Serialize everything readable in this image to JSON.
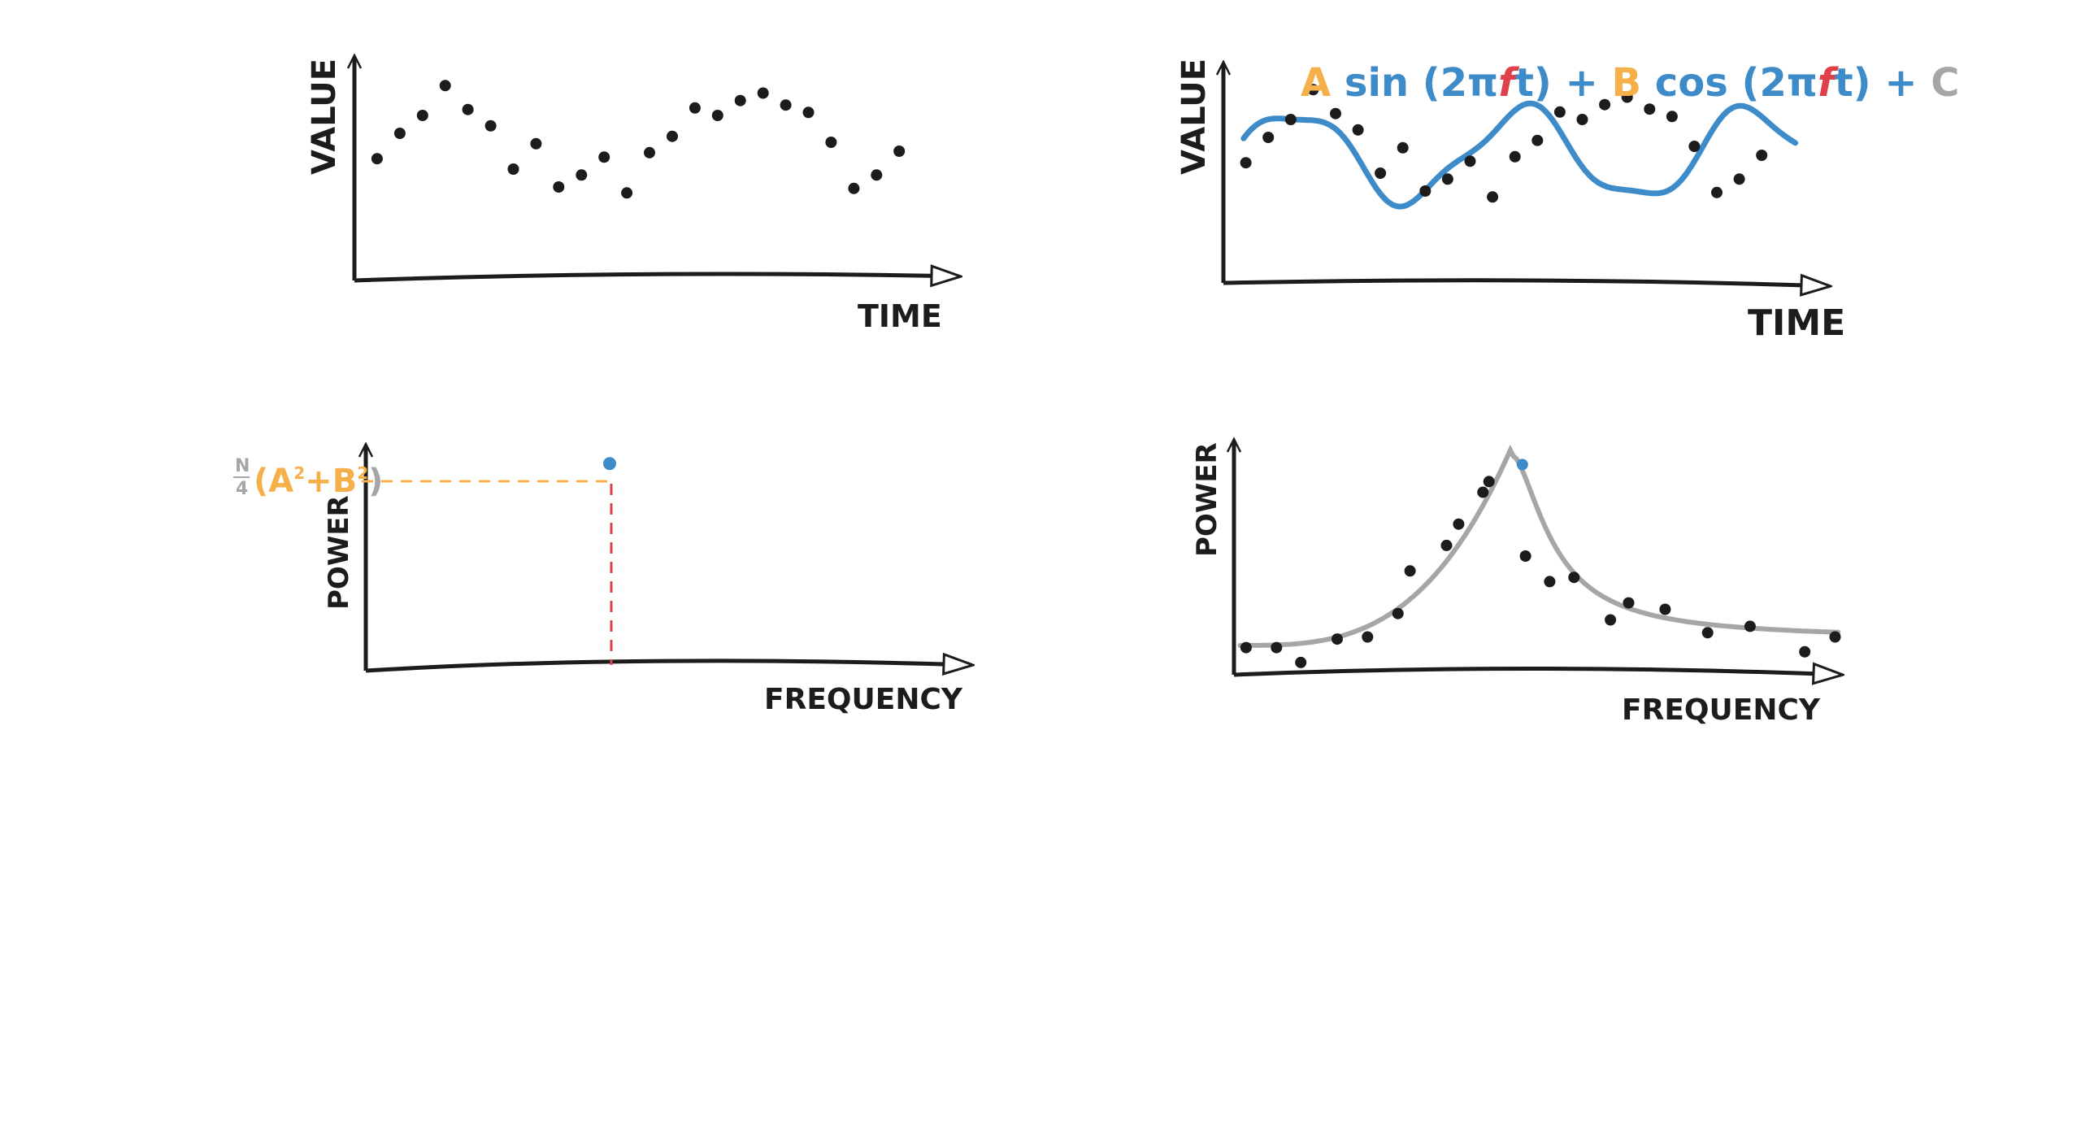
{
  "colors": {
    "ink": "#1c1c1c",
    "blue": "#3d8bc9",
    "orange": "#f5b04a",
    "red": "#e0404a",
    "gray": "#a6a6a6"
  },
  "panels": {
    "top_left": {
      "ylabel": "VALUE",
      "xlabel": "TIME"
    },
    "top_right": {
      "ylabel": "VALUE",
      "xlabel": "TIME",
      "equation": {
        "A": "A",
        "sin": " sin (2π",
        "f1": "f",
        "t1": "t) + ",
        "B": "B",
        "cos": " cos (2π",
        "f2": "f",
        "t2": "t) + ",
        "C": "C"
      }
    },
    "bottom_left": {
      "ylabel": "POWER",
      "xlabel": "FREQUENCY",
      "formula": {
        "n": "N",
        "d": "4",
        "open": "(",
        "a": "A",
        "sup1": "2",
        "plus": "+",
        "b": "B",
        "sup2": "2",
        "close": ")"
      }
    },
    "bottom_right": {
      "ylabel": "POWER",
      "xlabel": "FREQUENCY"
    }
  },
  "chart_data": [
    {
      "type": "scatter",
      "panel": "top_left",
      "xlabel": "TIME",
      "ylabel": "VALUE",
      "x": [
        1,
        2,
        3,
        4,
        5,
        6,
        7,
        8,
        9,
        10,
        11,
        12,
        13,
        14,
        15,
        16,
        17,
        18,
        19,
        20,
        21,
        22,
        23,
        24
      ],
      "y": [
        0.29,
        0.46,
        0.58,
        0.78,
        0.62,
        0.51,
        0.22,
        0.39,
        0.1,
        0.18,
        0.3,
        0.06,
        0.33,
        0.44,
        0.63,
        0.58,
        0.68,
        0.73,
        0.65,
        0.6,
        0.4,
        0.09,
        0.18,
        0.34
      ],
      "xlim": [
        0,
        27
      ],
      "ylim": [
        -0.5,
        1.0
      ]
    },
    {
      "type": "scatter",
      "panel": "top_right",
      "xlabel": "TIME",
      "ylabel": "VALUE",
      "x": [
        1,
        2,
        3,
        4,
        5,
        6,
        7,
        8,
        9,
        10,
        11,
        12,
        13,
        14,
        15,
        16,
        17,
        18,
        19,
        20,
        21,
        22,
        23,
        24
      ],
      "y": [
        0.29,
        0.46,
        0.58,
        0.78,
        0.62,
        0.51,
        0.22,
        0.39,
        0.1,
        0.18,
        0.3,
        0.06,
        0.33,
        0.44,
        0.63,
        0.58,
        0.68,
        0.73,
        0.65,
        0.6,
        0.4,
        0.09,
        0.18,
        0.34
      ],
      "fit": {
        "label": "A sin(2πft) + B cos(2πft) + C",
        "color": "#3d8bc9"
      },
      "xlim": [
        0,
        27
      ],
      "ylim": [
        -0.5,
        1.0
      ]
    },
    {
      "type": "scatter",
      "panel": "bottom_left",
      "xlabel": "FREQUENCY",
      "ylabel": "POWER",
      "x": [
        0.4
      ],
      "y": [
        1.0
      ],
      "highlight": "#3d8bc9",
      "xlim": [
        0,
        1
      ],
      "ylim": [
        0,
        1.1
      ]
    },
    {
      "type": "scatter",
      "panel": "bottom_right",
      "xlabel": "FREQUENCY",
      "ylabel": "POWER",
      "x": [
        0.02,
        0.07,
        0.11,
        0.17,
        0.22,
        0.27,
        0.29,
        0.35,
        0.37,
        0.41,
        0.42,
        0.48,
        0.52,
        0.56,
        0.62,
        0.65,
        0.71,
        0.78,
        0.85,
        0.94,
        0.99
      ],
      "y": [
        0.02,
        0.02,
        -0.05,
        0.06,
        0.07,
        0.18,
        0.38,
        0.5,
        0.6,
        0.75,
        0.8,
        0.45,
        0.33,
        0.35,
        0.15,
        0.23,
        0.2,
        0.09,
        0.12,
        0.0,
        0.07
      ],
      "peak": {
        "x": 0.46,
        "y": 0.88
      },
      "curve_color": "#a6a6a6",
      "xlim": [
        0,
        1
      ],
      "ylim": [
        -0.1,
        1.0
      ]
    }
  ]
}
